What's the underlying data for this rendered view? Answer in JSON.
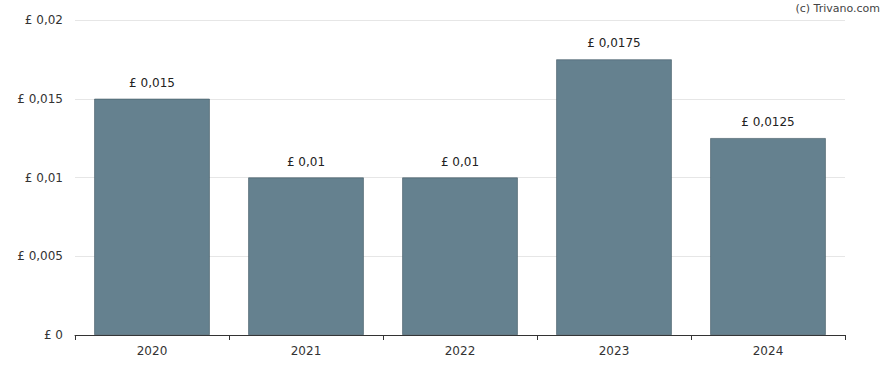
{
  "chart_data": {
    "type": "bar",
    "annotation": "(c) Trivano.com",
    "categories": [
      "2020",
      "2021",
      "2022",
      "2023",
      "2024"
    ],
    "values": [
      0.015,
      0.01,
      0.01,
      0.0175,
      0.0125
    ],
    "value_labels": [
      "£ 0,015",
      "£ 0,01",
      "£ 0,01",
      "£ 0,0175",
      "£ 0,0125"
    ],
    "color": "#65818f",
    "ylim": [
      0,
      0.02
    ],
    "yticks": [
      {
        "value": 0,
        "label": "£ 0"
      },
      {
        "value": 0.005,
        "label": "£ 0,005"
      },
      {
        "value": 0.01,
        "label": "£ 0,01"
      },
      {
        "value": 0.015,
        "label": "£ 0,015"
      },
      {
        "value": 0.02,
        "label": "£ 0,02"
      }
    ],
    "grid": true,
    "data_labels": true
  }
}
